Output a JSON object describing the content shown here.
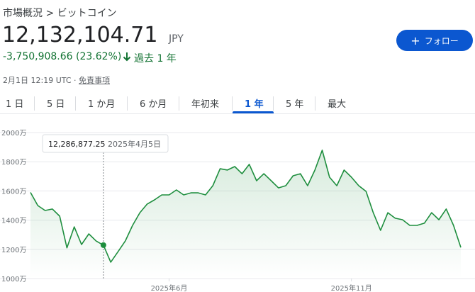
{
  "header": {
    "breadcrumb": "市場概況 > ビットコイン",
    "price": "12,132,104.71",
    "currency": "JPY",
    "change": "-3,750,908.66 (23.62%)",
    "period": "過去 1 年",
    "timestamp": "2月1日 12:19 UTC · ",
    "disclaimer": "免責事項",
    "follow": "フォロー"
  },
  "tabs": [
    "1 日",
    "5 日",
    "1 か月",
    "6 か月",
    "年初来",
    "1 年",
    "5 年",
    "最大"
  ],
  "chart_data": {
    "type": "line",
    "color": "#1e8e3e",
    "categories": [
      null,
      null,
      null,
      null,
      null,
      null,
      null,
      null,
      null,
      null,
      null,
      null,
      null,
      null,
      null,
      null,
      null,
      null,
      null,
      "2025年6月",
      null,
      null,
      null,
      null,
      null,
      null,
      null,
      null,
      null,
      null,
      null,
      null,
      null,
      null,
      null,
      null,
      null,
      null,
      null,
      null,
      null,
      null,
      null,
      null,
      "2025年11月",
      null,
      null,
      null,
      null,
      null,
      null,
      null,
      null,
      null,
      null,
      null,
      null,
      null,
      null,
      null
    ],
    "values": [
      1590,
      1500,
      1466,
      1476,
      1427,
      1210,
      1354,
      1233,
      1306,
      1257,
      1228.69,
      1112,
      1184,
      1257,
      1364,
      1451,
      1510,
      1539,
      1573,
      1573,
      1607,
      1573,
      1587,
      1587,
      1573,
      1636,
      1752,
      1743,
      1767,
      1718,
      1782,
      1670,
      1718,
      1670,
      1621,
      1636,
      1704,
      1718,
      1636,
      1743,
      1879,
      1694,
      1636,
      1743,
      1694,
      1636,
      1597,
      1451,
      1330,
      1451,
      1413,
      1403,
      1364,
      1364,
      1379,
      1451,
      1403,
      1476,
      1364,
      1213.21
    ],
    "ylim": [
      1000,
      2000
    ],
    "yticks": [
      {
        "value": 1000,
        "label": "1000万"
      },
      {
        "value": 1200,
        "label": "1200万"
      },
      {
        "value": 1400,
        "label": "1400万"
      },
      {
        "value": 1600,
        "label": "1600万"
      },
      {
        "value": 1800,
        "label": "1800万"
      },
      {
        "value": 2000,
        "label": "2000万"
      }
    ],
    "grid": true,
    "tooltip": {
      "index": 10,
      "value_label": "12,286,877.25",
      "date": "2025年4月5日"
    }
  }
}
